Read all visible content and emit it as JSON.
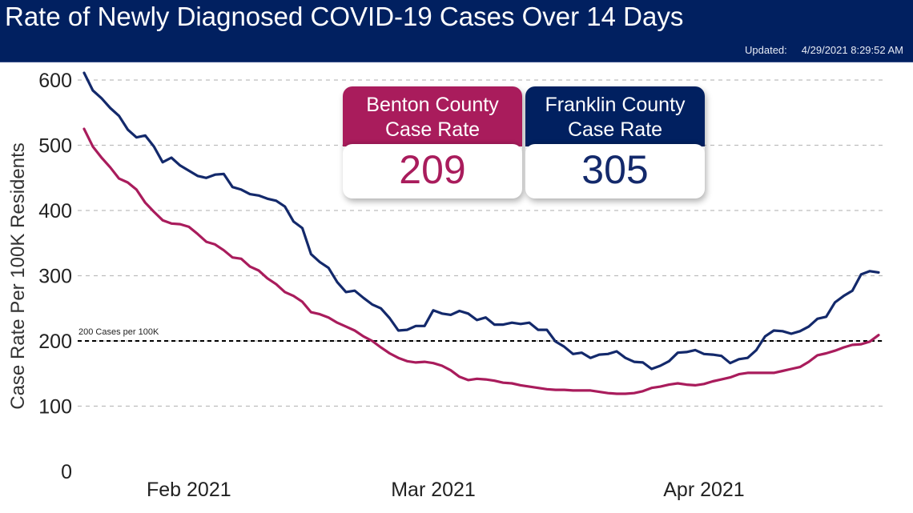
{
  "header": {
    "title": "Rate of Newly Diagnosed COVID-19 Cases Over 14 Days",
    "updated_label": "Updated:",
    "updated_value": "4/29/2021 8:29:52 AM"
  },
  "colors": {
    "header": "#012060",
    "benton": "#a91c5c",
    "franklin": "#13296b"
  },
  "cards": {
    "benton": {
      "title_line1": "Benton County",
      "title_line2": "Case Rate",
      "value": "209"
    },
    "franklin": {
      "title_line1": "Franklin County",
      "title_line2": "Case Rate",
      "value": "305"
    }
  },
  "chart_data": {
    "type": "line",
    "title": "Rate of Newly Diagnosed COVID-19 Cases Over 14 Days",
    "xlabel": "",
    "ylabel": "Case Rate Per 100K Residents",
    "ylim": [
      0,
      600
    ],
    "yticks": [
      "0",
      "100",
      "200",
      "300",
      "400",
      "500",
      "600"
    ],
    "xticks": [
      {
        "label": "Feb 2021",
        "date": "2021-02-01"
      },
      {
        "label": "Mar 2021",
        "date": "2021-03-01"
      },
      {
        "label": "Apr 2021",
        "date": "2021-04-01"
      }
    ],
    "grid": true,
    "reference_line": {
      "value": 200,
      "label": "200 Cases per 100K"
    },
    "x_range": [
      "2021-01-20",
      "2021-04-21"
    ],
    "series": [
      {
        "name": "Franklin County",
        "color": "#13296b",
        "values": [
          611,
          584,
          572,
          557,
          545,
          524,
          512,
          515,
          498,
          474,
          481,
          469,
          461,
          453,
          450,
          455,
          456,
          436,
          432,
          425,
          423,
          418,
          415,
          406,
          383,
          373,
          333,
          321,
          312,
          290,
          275,
          277,
          266,
          256,
          250,
          235,
          216,
          217,
          223,
          223,
          247,
          242,
          240,
          246,
          242,
          232,
          236,
          225,
          225,
          228,
          226,
          228,
          217,
          217,
          199,
          191,
          180,
          182,
          174,
          179,
          180,
          184,
          174,
          168,
          167,
          157,
          162,
          169,
          182,
          183,
          186,
          180,
          179,
          177,
          166,
          172,
          174,
          186,
          207,
          216,
          215,
          211,
          215,
          222,
          234,
          237,
          259,
          269,
          277,
          302,
          307,
          305
        ]
      },
      {
        "name": "Benton County",
        "color": "#a91c5c",
        "values": [
          525,
          498,
          481,
          466,
          449,
          443,
          432,
          412,
          398,
          385,
          380,
          379,
          375,
          364,
          352,
          348,
          339,
          328,
          326,
          314,
          308,
          296,
          287,
          275,
          269,
          260,
          244,
          241,
          236,
          228,
          222,
          216,
          207,
          200,
          190,
          181,
          174,
          169,
          167,
          168,
          166,
          162,
          155,
          145,
          140,
          142,
          141,
          139,
          136,
          135,
          132,
          130,
          128,
          126,
          125,
          125,
          124,
          124,
          124,
          122,
          120,
          119,
          119,
          120,
          123,
          128,
          130,
          133,
          135,
          133,
          132,
          134,
          138,
          141,
          144,
          149,
          151,
          151,
          151,
          151,
          154,
          157,
          160,
          168,
          178,
          181,
          185,
          190,
          194,
          195,
          199,
          209
        ]
      }
    ]
  }
}
